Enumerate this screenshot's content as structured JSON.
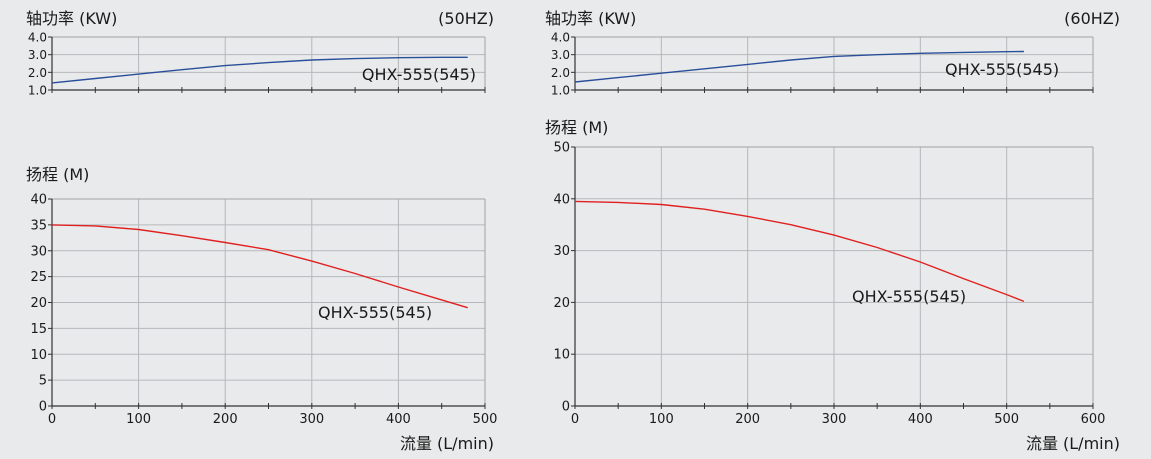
{
  "chart_data": [
    {
      "type": "line",
      "panel": "50Hz",
      "title": "轴功率 (KW)",
      "freq": "(50HZ)",
      "ylim": [
        1.0,
        4.0
      ],
      "xlim": [
        0,
        500
      ],
      "yticks": [
        "4.0",
        "3.0",
        "2.0",
        "1.0"
      ],
      "grid": true,
      "series": [
        {
          "name": "QHX-555(545)",
          "color": "#2a4f9a",
          "x": [
            0,
            50,
            100,
            150,
            200,
            250,
            300,
            350,
            400,
            450,
            480
          ],
          "y": [
            1.4,
            1.65,
            1.9,
            2.15,
            2.38,
            2.55,
            2.7,
            2.78,
            2.83,
            2.85,
            2.85
          ]
        }
      ]
    },
    {
      "type": "line",
      "panel": "50Hz",
      "title": "扬程 (M)",
      "xlabel": "流量 (L/min)",
      "xlim": [
        0,
        500
      ],
      "ylim": [
        0,
        40
      ],
      "xticks": [
        "0",
        "100",
        "200",
        "300",
        "400",
        "500"
      ],
      "yticks": [
        "40",
        "35",
        "30",
        "25",
        "20",
        "15",
        "10",
        "5",
        "0"
      ],
      "grid": true,
      "series": [
        {
          "name": "QHX-555(545)",
          "color": "#e02020",
          "x": [
            0,
            50,
            100,
            150,
            200,
            250,
            300,
            350,
            400,
            450,
            480
          ],
          "y": [
            35.0,
            34.8,
            34.1,
            32.9,
            31.6,
            30.2,
            28.0,
            25.6,
            23.0,
            20.5,
            19.0
          ]
        }
      ]
    },
    {
      "type": "line",
      "panel": "60Hz",
      "title": "轴功率 (KW)",
      "freq": "(60HZ)",
      "ylim": [
        1.0,
        4.0
      ],
      "xlim": [
        0,
        600
      ],
      "yticks": [
        "4.0",
        "3.0",
        "2.0",
        "1.0"
      ],
      "grid": true,
      "series": [
        {
          "name": "QHX-555(545)",
          "color": "#2a4f9a",
          "x": [
            0,
            50,
            100,
            150,
            200,
            250,
            300,
            350,
            400,
            450,
            500,
            520
          ],
          "y": [
            1.45,
            1.7,
            1.95,
            2.2,
            2.45,
            2.7,
            2.9,
            3.0,
            3.08,
            3.13,
            3.17,
            3.18
          ]
        }
      ]
    },
    {
      "type": "line",
      "panel": "60Hz",
      "title": "扬程 (M)",
      "xlabel": "流量 (L/min)",
      "xlim": [
        0,
        600
      ],
      "ylim": [
        0,
        50
      ],
      "xticks": [
        "0",
        "100",
        "200",
        "300",
        "400",
        "500",
        "600"
      ],
      "yticks": [
        "50",
        "40",
        "30",
        "20",
        "10",
        "0"
      ],
      "grid": true,
      "series": [
        {
          "name": "QHX-555(545)",
          "color": "#e02020",
          "x": [
            0,
            50,
            100,
            150,
            200,
            250,
            300,
            350,
            400,
            450,
            500,
            520
          ],
          "y": [
            39.5,
            39.3,
            38.9,
            38.0,
            36.6,
            35.0,
            33.0,
            30.6,
            27.8,
            24.6,
            21.5,
            20.2
          ]
        }
      ]
    }
  ]
}
